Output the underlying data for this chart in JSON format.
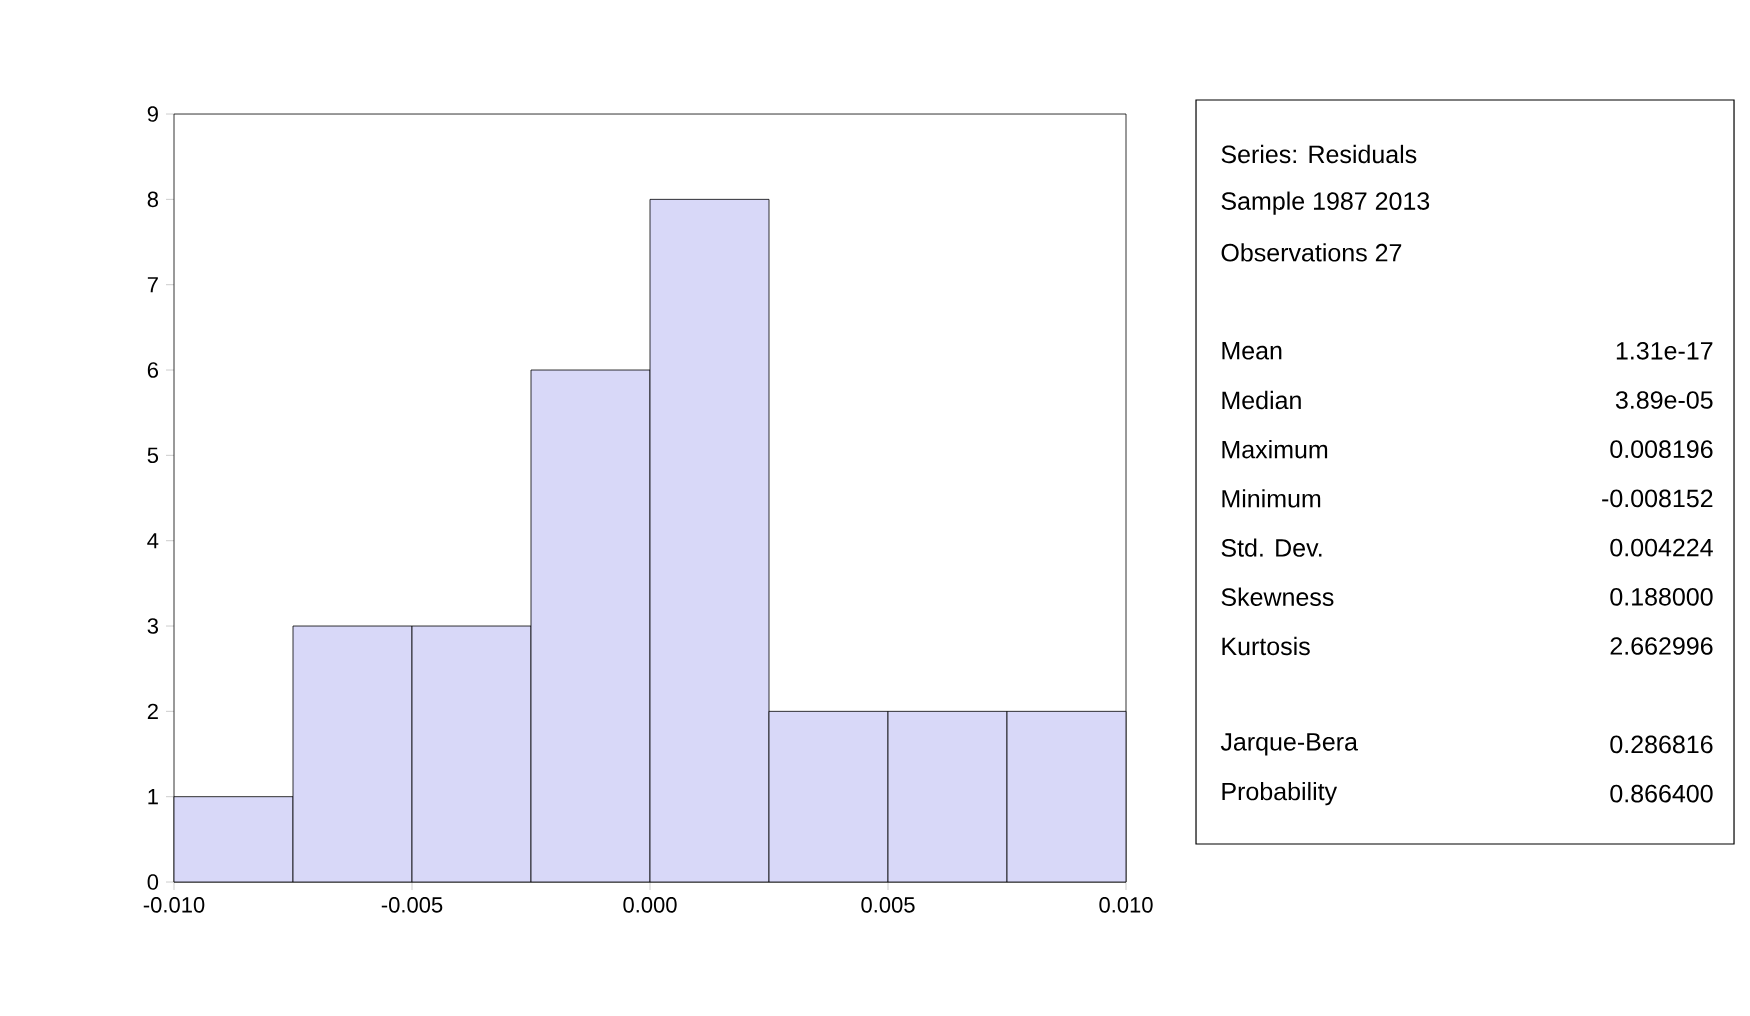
{
  "chart_data": {
    "type": "histogram",
    "bins": [
      -0.01,
      -0.0075,
      -0.005,
      -0.0025,
      0,
      0.0025,
      0.005,
      0.0075,
      0.01
    ],
    "values": [
      1,
      3,
      3,
      6,
      8,
      2,
      2,
      2
    ],
    "color": "#d8d8f8",
    "xlim": [
      -0.01,
      0.01
    ],
    "xticks": [
      {
        "value": -0.01,
        "label": "-0.010"
      },
      {
        "value": -0.005,
        "label": "-0.005"
      },
      {
        "value": 0,
        "label": "0.000"
      },
      {
        "value": 0.005,
        "label": "0.005"
      },
      {
        "value": 0.01,
        "label": "0.010"
      }
    ],
    "ylim": [
      0,
      9
    ],
    "yticks": [
      0,
      1,
      2,
      3,
      4,
      5,
      6,
      7,
      8,
      9
    ],
    "grid": false,
    "annotations": [
      "Series: Residuals",
      "Sample 1987 2013",
      "Observations 27",
      "Mean",
      "1.31e-17",
      "Median",
      "3.89e-05",
      "Maximum",
      "0.008196",
      "Minimum",
      "-0.008152",
      "Std. Dev.",
      "0.004224",
      "Skewness",
      "0.188000",
      "Kurtosis",
      "2.662996",
      "Jarque-Bera",
      "0.286816",
      "Probability",
      "0.866400"
    ]
  }
}
